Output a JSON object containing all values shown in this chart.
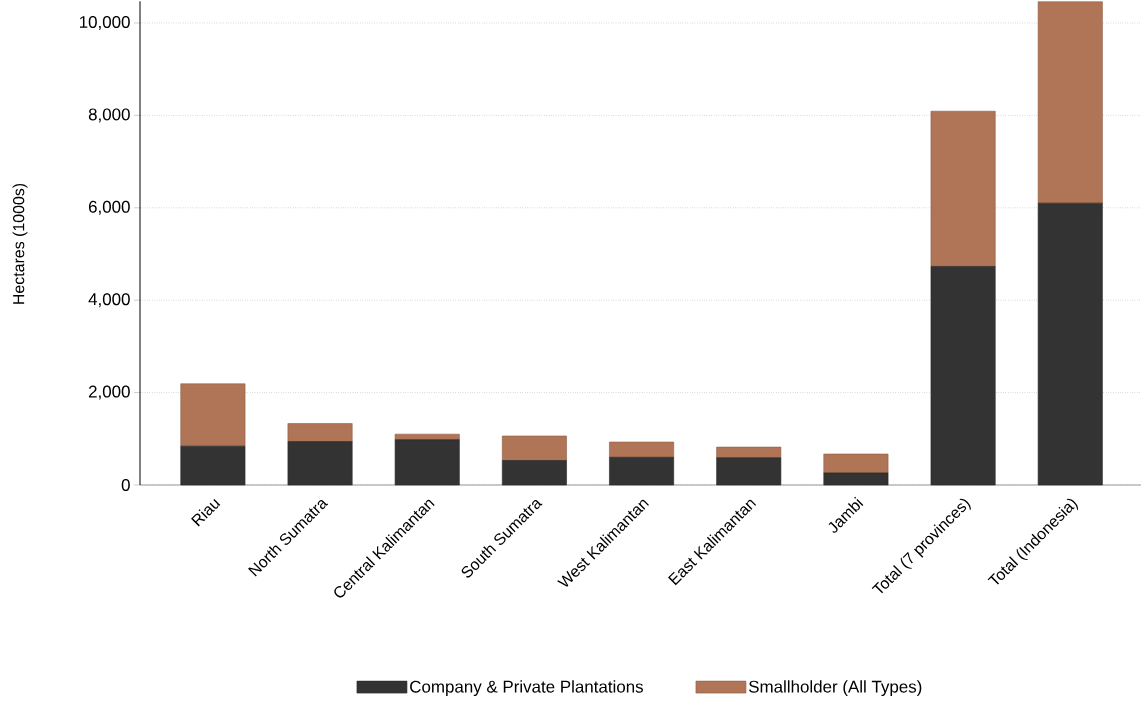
{
  "chart_data": {
    "type": "bar",
    "stacked": true,
    "ylabel": "Hectares (1000s)",
    "categories": [
      "Riau",
      "North Sumatra",
      "Central Kalimantan",
      "South Sumatra",
      "West Kalimantan",
      "East Kalimantan",
      "Jambi",
      "Total (7 provinces)",
      "Total (Indonesia)"
    ],
    "series": [
      {
        "name": "Company & Private Plantations",
        "color": "#333333",
        "values": [
          840,
          940,
          980,
          530,
          600,
          590,
          260,
          4730,
          6100
        ]
      },
      {
        "name": "Smallholder (All Types)",
        "color": "#b07556",
        "values": [
          1350,
          390,
          120,
          530,
          330,
          230,
          410,
          3360,
          4360
        ]
      }
    ],
    "ylim": [
      0,
      10470
    ],
    "yticks": [
      0,
      {
        "value": 2000,
        "label": "2,000"
      },
      {
        "value": 4000,
        "label": "4,000"
      },
      {
        "value": 6000,
        "label": "6,000"
      },
      {
        "value": 8000,
        "label": "8,000"
      },
      {
        "value": 10000,
        "label": "10,000"
      }
    ],
    "grid": "y",
    "legend": "bottom"
  }
}
